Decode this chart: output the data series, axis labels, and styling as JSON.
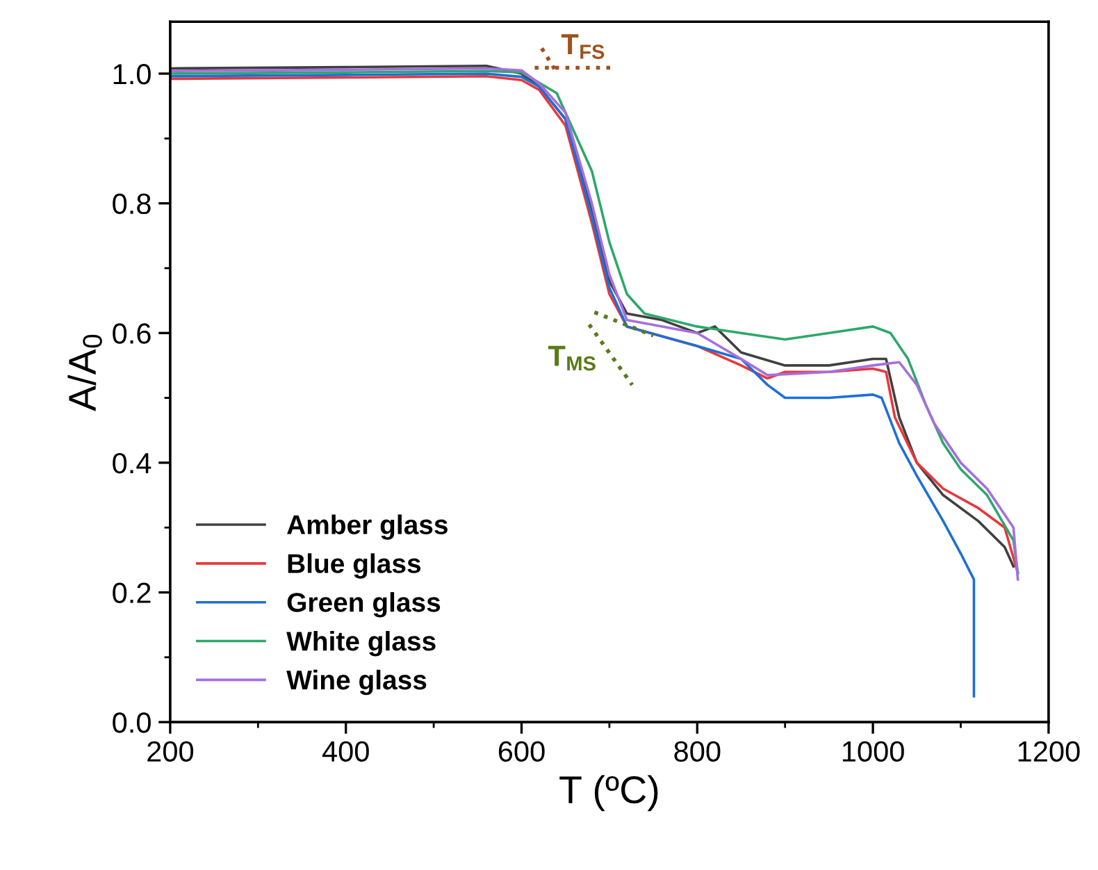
{
  "chart_data": {
    "type": "line",
    "xlabel": "T (ºC)",
    "ylabel": "A/A$_{0}$",
    "xlim": [
      200,
      1200
    ],
    "ylim": [
      0,
      1.08
    ],
    "xticks": [
      200,
      400,
      600,
      800,
      1000,
      1200
    ],
    "yticks": [
      {
        "value": 0,
        "label": "0.0"
      },
      0.2,
      0.4,
      0.6,
      0.8,
      {
        "value": 1,
        "label": "1.0"
      }
    ],
    "grid": false,
    "legend": "bottom left",
    "marker": "none",
    "line_style": "solid",
    "annotations": [
      "T$_{FS}$",
      "T$_{MS}$"
    ],
    "series": [
      {
        "name": "Amber glass",
        "color": "#404040",
        "x": [
          200,
          400,
          560,
          600,
          620,
          650,
          680,
          700,
          720,
          760,
          800,
          820,
          850,
          900,
          950,
          1000,
          1015,
          1030,
          1050,
          1080,
          1120,
          1150,
          1160
        ],
        "values": [
          1.008,
          1.01,
          1.012,
          1.0,
          0.98,
          0.93,
          0.79,
          0.68,
          0.63,
          0.62,
          0.6,
          0.61,
          0.57,
          0.55,
          0.55,
          0.56,
          0.56,
          0.47,
          0.4,
          0.35,
          0.31,
          0.27,
          0.24
        ]
      },
      {
        "name": "Blue glass",
        "color": "#e8383b",
        "x": [
          200,
          400,
          560,
          600,
          620,
          650,
          680,
          700,
          720,
          800,
          850,
          880,
          900,
          950,
          1000,
          1015,
          1025,
          1050,
          1080,
          1120,
          1150,
          1165
        ],
        "values": [
          0.992,
          0.994,
          0.996,
          0.99,
          0.975,
          0.92,
          0.77,
          0.66,
          0.61,
          0.58,
          0.55,
          0.53,
          0.54,
          0.54,
          0.545,
          0.54,
          0.47,
          0.4,
          0.36,
          0.33,
          0.3,
          0.23
        ]
      },
      {
        "name": "Green glass",
        "color": "#1f6fd6",
        "x": [
          200,
          400,
          560,
          600,
          620,
          650,
          680,
          700,
          720,
          800,
          850,
          880,
          900,
          950,
          1000,
          1010,
          1030,
          1050,
          1080,
          1100,
          1115,
          1115
        ],
        "values": [
          0.996,
          0.998,
          1.0,
          0.995,
          0.98,
          0.93,
          0.78,
          0.67,
          0.61,
          0.58,
          0.56,
          0.52,
          0.5,
          0.5,
          0.505,
          0.5,
          0.43,
          0.38,
          0.31,
          0.26,
          0.22,
          0.04
        ]
      },
      {
        "name": "White glass",
        "color": "#2ea86a",
        "x": [
          200,
          400,
          560,
          600,
          640,
          680,
          700,
          720,
          740,
          800,
          850,
          900,
          950,
          1000,
          1020,
          1040,
          1060,
          1080,
          1100,
          1130,
          1160,
          1165
        ],
        "values": [
          1.0,
          1.002,
          1.004,
          1.002,
          0.97,
          0.85,
          0.74,
          0.66,
          0.63,
          0.61,
          0.6,
          0.59,
          0.6,
          0.61,
          0.6,
          0.56,
          0.49,
          0.43,
          0.39,
          0.35,
          0.28,
          0.23
        ]
      },
      {
        "name": "Wine glass",
        "color": "#a66ee0",
        "x": [
          200,
          400,
          560,
          600,
          620,
          650,
          680,
          700,
          720,
          800,
          850,
          880,
          950,
          1000,
          1030,
          1050,
          1070,
          1100,
          1130,
          1160,
          1165
        ],
        "values": [
          1.004,
          1.006,
          1.008,
          1.005,
          0.985,
          0.94,
          0.8,
          0.69,
          0.62,
          0.6,
          0.56,
          0.535,
          0.54,
          0.55,
          0.555,
          0.52,
          0.46,
          0.4,
          0.36,
          0.3,
          0.22
        ]
      },
      {
        "color": "#a0521d",
        "line_style": "dotted",
        "x": [
          615,
          702
        ],
        "values": [
          1.009,
          1.009
        ]
      },
      {
        "color": "#a0521d",
        "line_style": "dotted",
        "x": [
          623,
          639
        ],
        "values": [
          1.039,
          1.004
        ]
      },
      {
        "color": "#5a7a1a",
        "line_style": "dotted",
        "x": [
          677,
          726
        ],
        "values": [
          0.613,
          0.52
        ]
      },
      {
        "color": "#5a7a1a",
        "line_style": "dotted",
        "x": [
          683,
          750
        ],
        "values": [
          0.632,
          0.596
        ]
      }
    ]
  }
}
